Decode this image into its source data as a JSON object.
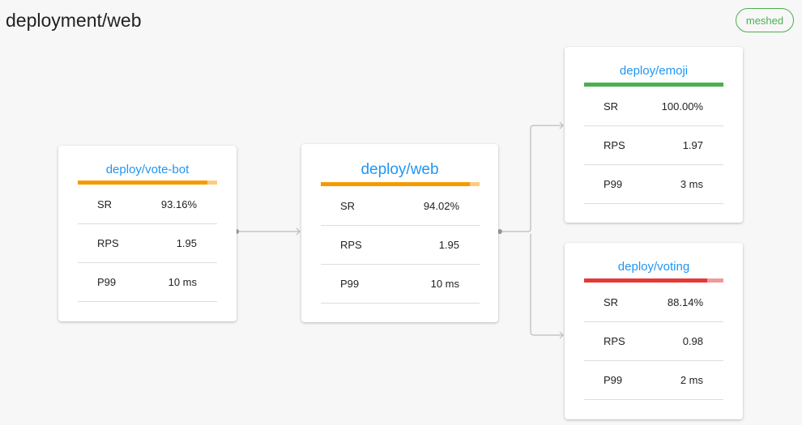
{
  "header": {
    "title": "deployment/web",
    "badge": "meshed"
  },
  "colors": {
    "orange": "#f59b00",
    "orange_light": "#fccb7e",
    "green": "#4caf50",
    "red": "#e53935",
    "red_light": "#ef9a9a",
    "link": "#2196f3"
  },
  "nodes": [
    {
      "name": "deploy/vote-bot",
      "sr_fraction": 0.9316,
      "status": "warning",
      "metrics": [
        {
          "label": "SR",
          "value": "93.16%"
        },
        {
          "label": "RPS",
          "value": "1.95"
        },
        {
          "label": "P99",
          "value": "10 ms"
        }
      ]
    },
    {
      "name": "deploy/web",
      "sr_fraction": 0.9402,
      "status": "warning",
      "metrics": [
        {
          "label": "SR",
          "value": "94.02%"
        },
        {
          "label": "RPS",
          "value": "1.95"
        },
        {
          "label": "P99",
          "value": "10 ms"
        }
      ]
    },
    {
      "name": "deploy/emoji",
      "sr_fraction": 1.0,
      "status": "good",
      "metrics": [
        {
          "label": "SR",
          "value": "100.00%"
        },
        {
          "label": "RPS",
          "value": "1.97"
        },
        {
          "label": "P99",
          "value": "3 ms"
        }
      ]
    },
    {
      "name": "deploy/voting",
      "sr_fraction": 0.8814,
      "status": "bad",
      "metrics": [
        {
          "label": "SR",
          "value": "88.14%"
        },
        {
          "label": "RPS",
          "value": "0.98"
        },
        {
          "label": "P99",
          "value": "2 ms"
        }
      ]
    }
  ]
}
